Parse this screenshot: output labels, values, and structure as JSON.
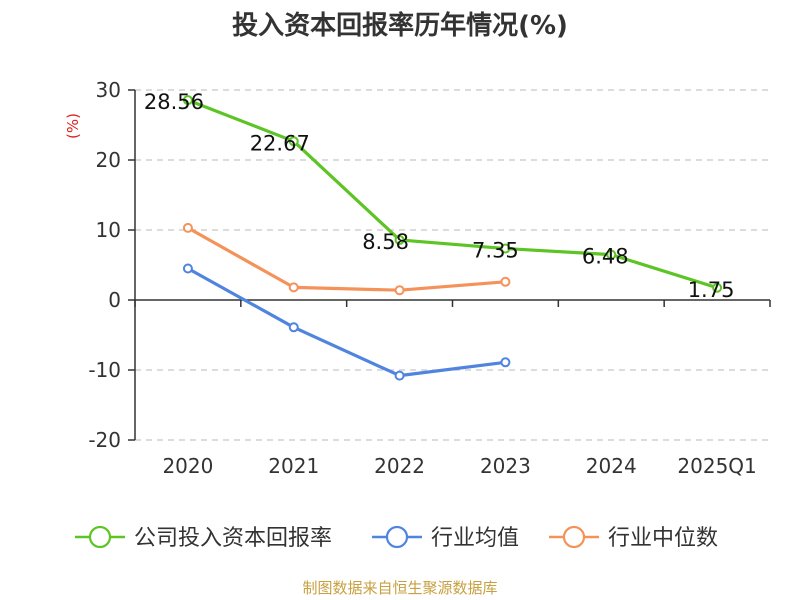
{
  "chart_data": {
    "type": "line",
    "title": "投入资本回报率历年情况(%)",
    "ylabel": "(%)",
    "categories": [
      "2020",
      "2021",
      "2022",
      "2023",
      "2024",
      "2025Q1"
    ],
    "ylim": [
      -20,
      30
    ],
    "yticks": [
      30,
      20,
      10,
      0,
      -10,
      -20
    ],
    "ytick_labels": [
      "30",
      "20",
      "10",
      "0",
      "-10",
      "-20"
    ],
    "grid": true,
    "legend_position": "bottom",
    "series": [
      {
        "name": "公司投入资本回报率",
        "color": "#5cc424",
        "values": [
          28.56,
          22.67,
          8.58,
          7.35,
          6.48,
          1.75
        ],
        "labels": [
          "28.56",
          "22.67",
          "8.58",
          "7.35",
          "6.48",
          "1.75"
        ]
      },
      {
        "name": "行业均值",
        "color": "#4f84df",
        "values": [
          4.5,
          -3.9,
          -10.8,
          -8.9,
          null,
          null
        ]
      },
      {
        "name": "行业中位数",
        "color": "#f5925a",
        "values": [
          10.3,
          1.8,
          1.4,
          2.6,
          null,
          null
        ]
      }
    ]
  },
  "source": "制图数据来自恒生聚源数据库"
}
